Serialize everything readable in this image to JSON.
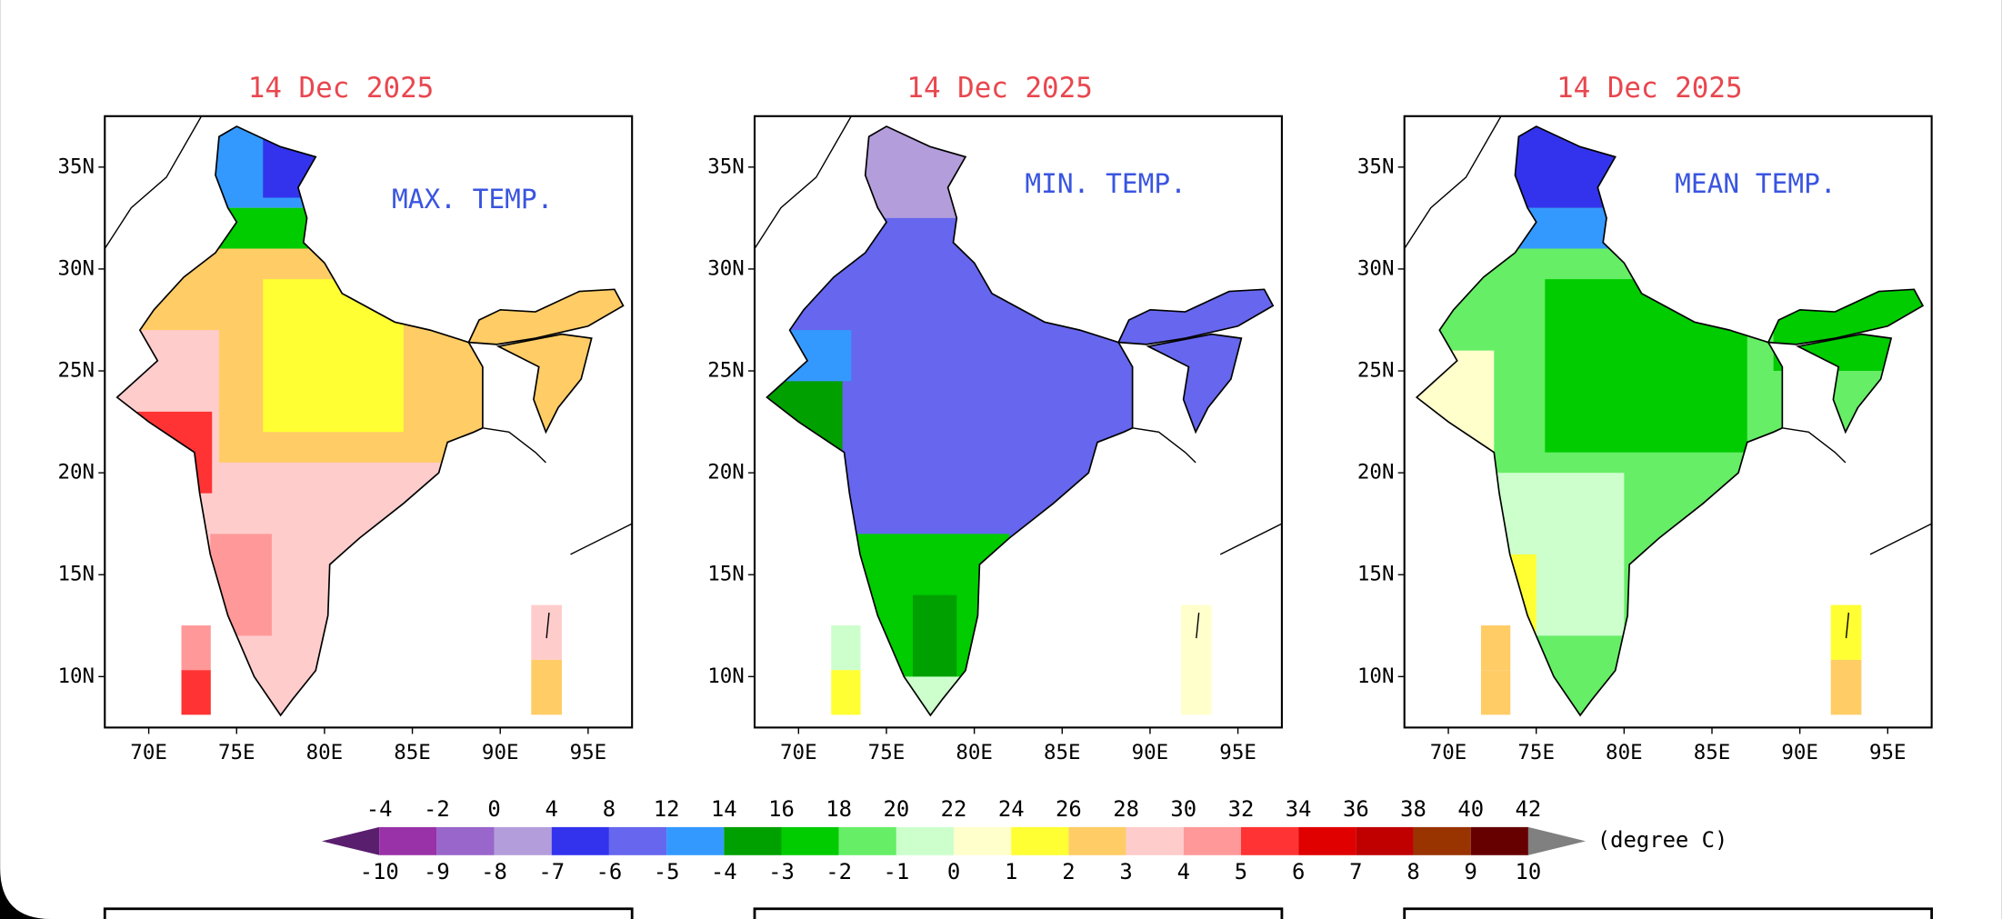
{
  "panels": [
    {
      "title": "14 Dec 2025",
      "label": "MAX. TEMP."
    },
    {
      "title": "14 Dec 2025",
      "label": "MIN. TEMP."
    },
    {
      "title": "14 Dec 2025",
      "label": "MEAN TEMP."
    }
  ],
  "lat_ticks": [
    "35N",
    "30N",
    "25N",
    "20N",
    "15N",
    "10N"
  ],
  "lon_ticks": [
    "70E",
    "75E",
    "80E",
    "85E",
    "90E",
    "95E"
  ],
  "colorbar": {
    "top_labels": [
      "-4",
      "-2",
      "0",
      "4",
      "8",
      "12",
      "14",
      "16",
      "18",
      "20",
      "22",
      "24",
      "26",
      "28",
      "30",
      "32",
      "34",
      "36",
      "38",
      "40",
      "42"
    ],
    "bottom_labels": [
      "-10",
      "-9",
      "-8",
      "-7",
      "-6",
      "-5",
      "-4",
      "-3",
      "-2",
      "-1",
      "0",
      "1",
      "2",
      "3",
      "4",
      "5",
      "6",
      "7",
      "8",
      "9",
      "10"
    ],
    "colors": [
      "#5a1e6e",
      "#9932a8",
      "#9966cc",
      "#b39ddb",
      "#3333ee",
      "#6666ee",
      "#3399ff",
      "#00a000",
      "#00cc00",
      "#66ee66",
      "#ccffcc",
      "#ffffcc",
      "#ffff33",
      "#ffcc66",
      "#ffcccc",
      "#ff9999",
      "#ff3333",
      "#e00000",
      "#c00000",
      "#993300",
      "#660000",
      "#808080"
    ],
    "unit": "(degree C)"
  }
}
